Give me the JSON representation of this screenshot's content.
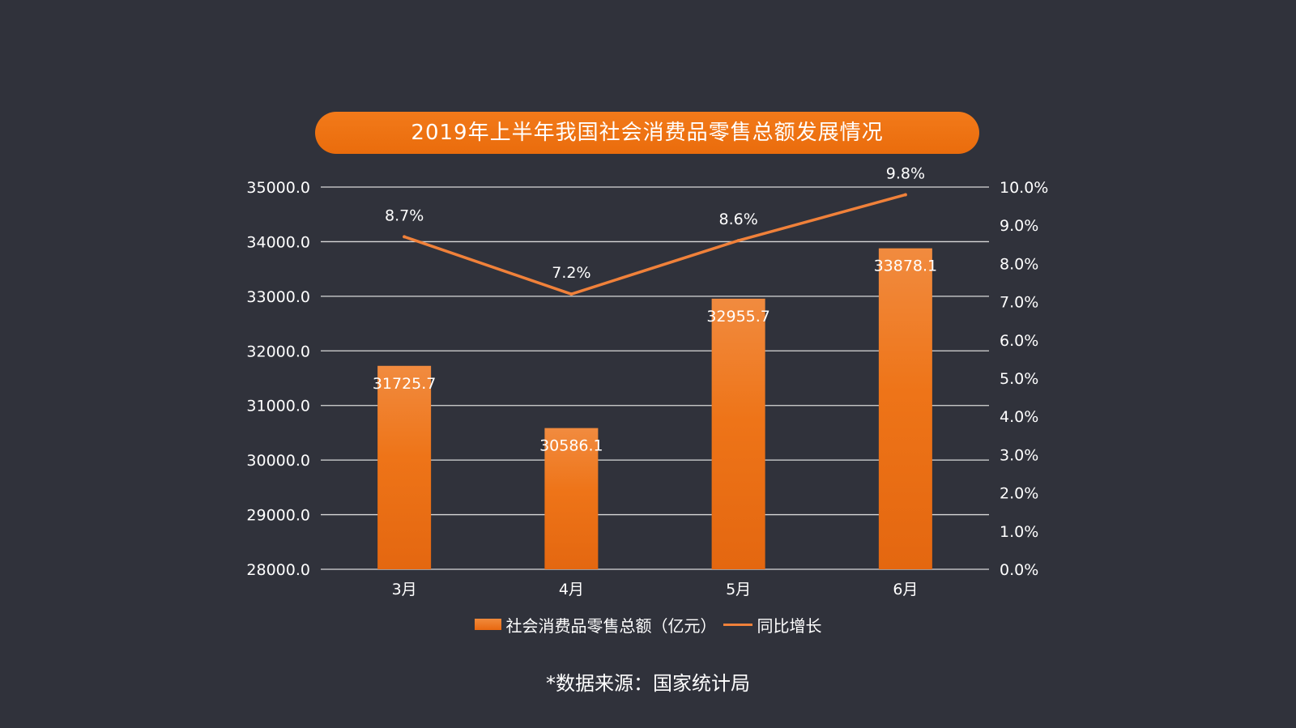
{
  "chart_data": {
    "type": "bar",
    "title": "2019年上半年我国社会消费品零售总额发展情况",
    "categories": [
      "3月",
      "4月",
      "5月",
      "6月"
    ],
    "series": [
      {
        "name": "社会消费品零售总额（亿元）",
        "type": "bar",
        "axis": "left",
        "values": [
          31725.7,
          30586.1,
          32955.7,
          33878.1
        ],
        "labels": [
          "31725.7",
          "30586.1",
          "32955.7",
          "33878.1"
        ]
      },
      {
        "name": "同比增长",
        "type": "line",
        "axis": "right",
        "values": [
          8.7,
          7.2,
          8.6,
          9.8
        ],
        "labels": [
          "8.7%",
          "7.2%",
          "8.6%",
          "9.8%"
        ]
      }
    ],
    "ylim": [
      28000,
      35000
    ],
    "y_ticks": [
      "28000.0",
      "29000.0",
      "30000.0",
      "31000.0",
      "32000.0",
      "33000.0",
      "34000.0",
      "35000.0"
    ],
    "y2lim": [
      0,
      10
    ],
    "y2_ticks": [
      "0.0%",
      "1.0%",
      "2.0%",
      "3.0%",
      "4.0%",
      "5.0%",
      "6.0%",
      "7.0%",
      "8.0%",
      "9.0%",
      "10.0%"
    ],
    "grid": true,
    "legend_position": "bottom",
    "colors": {
      "background": "#30323b",
      "accent": "#ee7114",
      "bar_top": "#f18b3f",
      "bar_bottom": "#e46710",
      "line": "#f0813a",
      "grid": "#d9d9d9",
      "text": "#ffffff"
    }
  },
  "footer": {
    "source": "*数据来源：国家统计局"
  }
}
